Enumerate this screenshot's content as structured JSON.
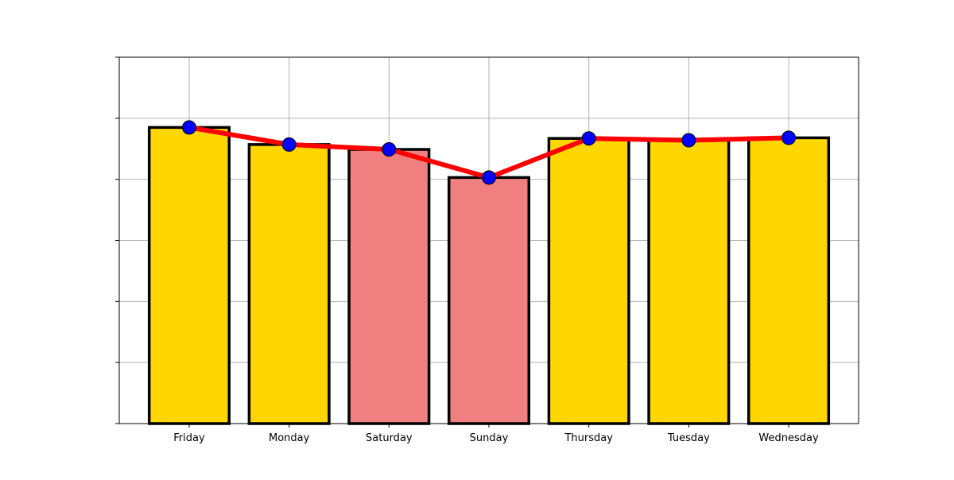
{
  "chart_data": {
    "type": "bar",
    "title": "",
    "xlabel": "",
    "ylabel": "",
    "categories": [
      "Friday",
      "Monday",
      "Saturday",
      "Sunday",
      "Thursday",
      "Tuesday",
      "Wednesday"
    ],
    "series": [
      {
        "type": "bar",
        "values": [
          4.85,
          4.57,
          4.49,
          4.03,
          4.67,
          4.64,
          4.68
        ]
      },
      {
        "type": "line",
        "values": [
          4.85,
          4.57,
          4.49,
          4.03,
          4.67,
          4.64,
          4.68
        ]
      }
    ],
    "ylim": [
      0,
      6
    ],
    "y_ticks": [
      0,
      1,
      2,
      3,
      4,
      5,
      6
    ],
    "y_tick_labels_visible": false,
    "grid": true,
    "legend": "none",
    "colors": {
      "weekday_bar": "#FFD700",
      "weekend_bar": "#F08080",
      "bar_edge": "#000000",
      "line": "#FF0000",
      "marker_fill": "#0000FF",
      "marker_edge": "#000000",
      "grid": "#B0B0B0"
    },
    "bar_color_keys": [
      "weekday_bar",
      "weekday_bar",
      "weekend_bar",
      "weekend_bar",
      "weekday_bar",
      "weekday_bar",
      "weekday_bar"
    ]
  }
}
